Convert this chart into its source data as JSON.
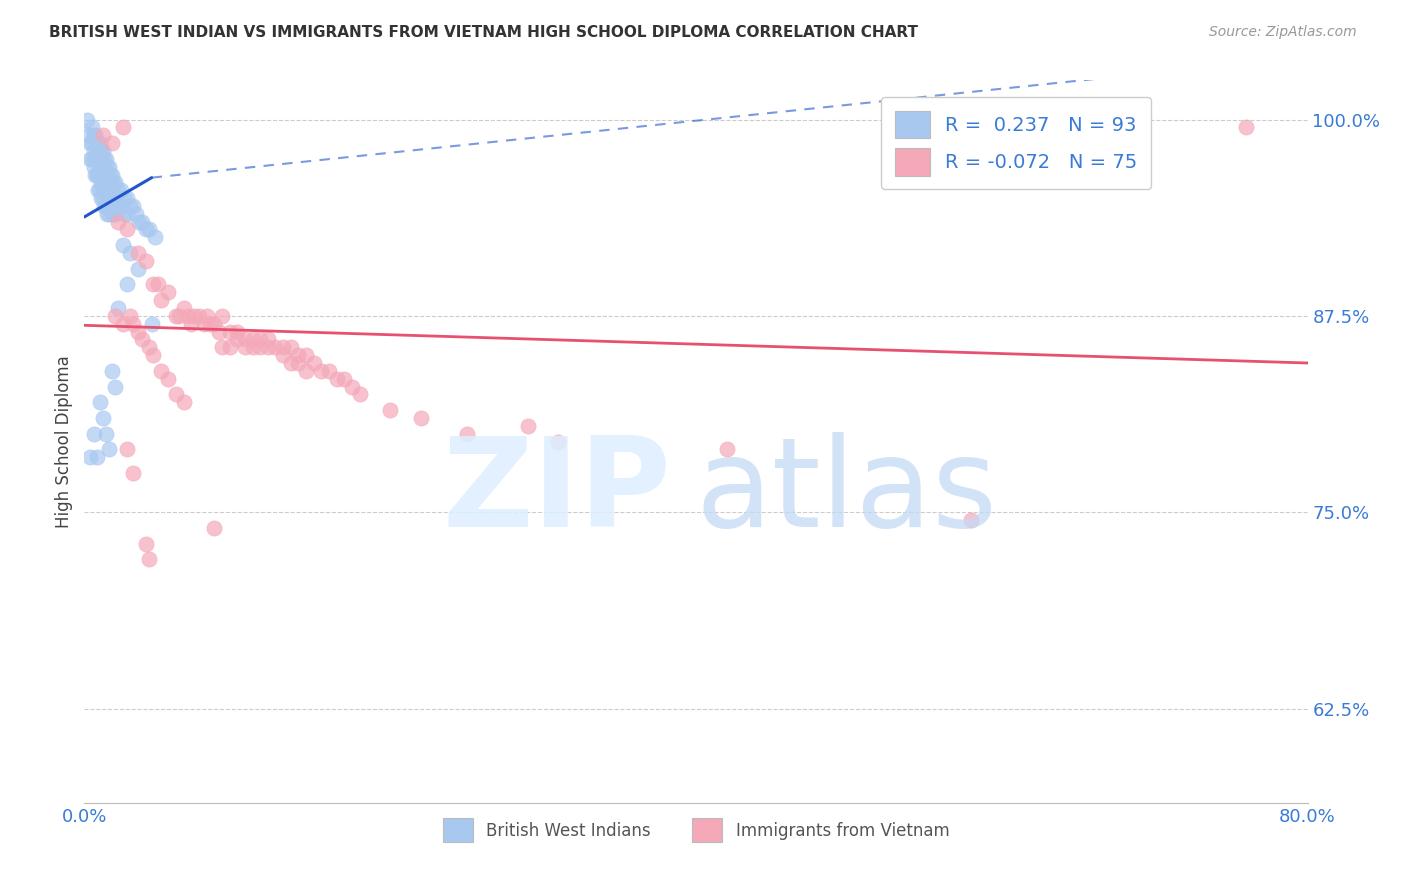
{
  "title": "BRITISH WEST INDIAN VS IMMIGRANTS FROM VIETNAM HIGH SCHOOL DIPLOMA CORRELATION CHART",
  "source": "Source: ZipAtlas.com",
  "ylabel": "High School Diploma",
  "ytick_labels": [
    "100.0%",
    "87.5%",
    "75.0%",
    "62.5%"
  ],
  "ytick_values": [
    1.0,
    0.875,
    0.75,
    0.625
  ],
  "xlim": [
    0.0,
    0.8
  ],
  "ylim": [
    0.565,
    1.025
  ],
  "watermark_zip": "ZIP",
  "watermark_atlas": "atlas",
  "blue_color": "#a8c8f0",
  "pink_color": "#f4a8b8",
  "blue_line_color": "#2255cc",
  "pink_line_color": "#e85070",
  "blue_scatter": [
    [
      0.002,
      1.0
    ],
    [
      0.003,
      0.99
    ],
    [
      0.004,
      0.985
    ],
    [
      0.004,
      0.975
    ],
    [
      0.005,
      0.995
    ],
    [
      0.005,
      0.985
    ],
    [
      0.005,
      0.975
    ],
    [
      0.006,
      0.99
    ],
    [
      0.006,
      0.98
    ],
    [
      0.006,
      0.97
    ],
    [
      0.007,
      0.99
    ],
    [
      0.007,
      0.975
    ],
    [
      0.007,
      0.965
    ],
    [
      0.008,
      0.985
    ],
    [
      0.008,
      0.975
    ],
    [
      0.008,
      0.965
    ],
    [
      0.009,
      0.98
    ],
    [
      0.009,
      0.975
    ],
    [
      0.009,
      0.965
    ],
    [
      0.009,
      0.955
    ],
    [
      0.01,
      0.985
    ],
    [
      0.01,
      0.975
    ],
    [
      0.01,
      0.965
    ],
    [
      0.01,
      0.955
    ],
    [
      0.011,
      0.98
    ],
    [
      0.011,
      0.97
    ],
    [
      0.011,
      0.96
    ],
    [
      0.011,
      0.95
    ],
    [
      0.012,
      0.98
    ],
    [
      0.012,
      0.97
    ],
    [
      0.012,
      0.96
    ],
    [
      0.012,
      0.95
    ],
    [
      0.013,
      0.975
    ],
    [
      0.013,
      0.965
    ],
    [
      0.013,
      0.955
    ],
    [
      0.013,
      0.945
    ],
    [
      0.014,
      0.975
    ],
    [
      0.014,
      0.965
    ],
    [
      0.014,
      0.955
    ],
    [
      0.014,
      0.945
    ],
    [
      0.015,
      0.97
    ],
    [
      0.015,
      0.96
    ],
    [
      0.015,
      0.95
    ],
    [
      0.015,
      0.94
    ],
    [
      0.016,
      0.97
    ],
    [
      0.016,
      0.96
    ],
    [
      0.016,
      0.95
    ],
    [
      0.016,
      0.94
    ],
    [
      0.017,
      0.965
    ],
    [
      0.017,
      0.955
    ],
    [
      0.017,
      0.945
    ],
    [
      0.018,
      0.965
    ],
    [
      0.018,
      0.955
    ],
    [
      0.018,
      0.945
    ],
    [
      0.019,
      0.96
    ],
    [
      0.019,
      0.95
    ],
    [
      0.019,
      0.94
    ],
    [
      0.02,
      0.96
    ],
    [
      0.02,
      0.95
    ],
    [
      0.02,
      0.94
    ],
    [
      0.022,
      0.955
    ],
    [
      0.022,
      0.945
    ],
    [
      0.024,
      0.955
    ],
    [
      0.024,
      0.945
    ],
    [
      0.026,
      0.95
    ],
    [
      0.026,
      0.94
    ],
    [
      0.028,
      0.95
    ],
    [
      0.028,
      0.94
    ],
    [
      0.03,
      0.945
    ],
    [
      0.032,
      0.945
    ],
    [
      0.034,
      0.94
    ],
    [
      0.036,
      0.935
    ],
    [
      0.038,
      0.935
    ],
    [
      0.04,
      0.93
    ],
    [
      0.042,
      0.93
    ],
    [
      0.044,
      0.87
    ],
    [
      0.046,
      0.925
    ],
    [
      0.025,
      0.92
    ],
    [
      0.03,
      0.915
    ],
    [
      0.022,
      0.88
    ],
    [
      0.02,
      0.83
    ],
    [
      0.018,
      0.84
    ],
    [
      0.016,
      0.79
    ],
    [
      0.014,
      0.8
    ],
    [
      0.012,
      0.81
    ],
    [
      0.01,
      0.82
    ],
    [
      0.008,
      0.785
    ],
    [
      0.006,
      0.8
    ],
    [
      0.004,
      0.785
    ],
    [
      0.035,
      0.905
    ],
    [
      0.028,
      0.895
    ]
  ],
  "pink_scatter": [
    [
      0.012,
      0.99
    ],
    [
      0.018,
      0.985
    ],
    [
      0.025,
      0.995
    ],
    [
      0.022,
      0.935
    ],
    [
      0.028,
      0.93
    ],
    [
      0.035,
      0.915
    ],
    [
      0.04,
      0.91
    ],
    [
      0.045,
      0.895
    ],
    [
      0.048,
      0.895
    ],
    [
      0.05,
      0.885
    ],
    [
      0.055,
      0.89
    ],
    [
      0.06,
      0.875
    ],
    [
      0.062,
      0.875
    ],
    [
      0.065,
      0.88
    ],
    [
      0.068,
      0.875
    ],
    [
      0.07,
      0.87
    ],
    [
      0.072,
      0.875
    ],
    [
      0.075,
      0.875
    ],
    [
      0.078,
      0.87
    ],
    [
      0.08,
      0.875
    ],
    [
      0.082,
      0.87
    ],
    [
      0.085,
      0.87
    ],
    [
      0.088,
      0.865
    ],
    [
      0.09,
      0.875
    ],
    [
      0.09,
      0.855
    ],
    [
      0.095,
      0.865
    ],
    [
      0.095,
      0.855
    ],
    [
      0.1,
      0.865
    ],
    [
      0.1,
      0.86
    ],
    [
      0.105,
      0.86
    ],
    [
      0.105,
      0.855
    ],
    [
      0.11,
      0.86
    ],
    [
      0.11,
      0.855
    ],
    [
      0.115,
      0.86
    ],
    [
      0.115,
      0.855
    ],
    [
      0.12,
      0.86
    ],
    [
      0.12,
      0.855
    ],
    [
      0.125,
      0.855
    ],
    [
      0.13,
      0.855
    ],
    [
      0.13,
      0.85
    ],
    [
      0.135,
      0.855
    ],
    [
      0.135,
      0.845
    ],
    [
      0.14,
      0.85
    ],
    [
      0.14,
      0.845
    ],
    [
      0.145,
      0.85
    ],
    [
      0.145,
      0.84
    ],
    [
      0.15,
      0.845
    ],
    [
      0.155,
      0.84
    ],
    [
      0.16,
      0.84
    ],
    [
      0.165,
      0.835
    ],
    [
      0.17,
      0.835
    ],
    [
      0.175,
      0.83
    ],
    [
      0.18,
      0.825
    ],
    [
      0.02,
      0.875
    ],
    [
      0.025,
      0.87
    ],
    [
      0.03,
      0.875
    ],
    [
      0.032,
      0.87
    ],
    [
      0.035,
      0.865
    ],
    [
      0.038,
      0.86
    ],
    [
      0.042,
      0.855
    ],
    [
      0.045,
      0.85
    ],
    [
      0.05,
      0.84
    ],
    [
      0.055,
      0.835
    ],
    [
      0.06,
      0.825
    ],
    [
      0.065,
      0.82
    ],
    [
      0.028,
      0.79
    ],
    [
      0.032,
      0.775
    ],
    [
      0.04,
      0.73
    ],
    [
      0.042,
      0.72
    ],
    [
      0.085,
      0.74
    ],
    [
      0.2,
      0.815
    ],
    [
      0.22,
      0.81
    ],
    [
      0.25,
      0.8
    ],
    [
      0.29,
      0.805
    ],
    [
      0.31,
      0.795
    ],
    [
      0.42,
      0.79
    ],
    [
      0.58,
      0.745
    ],
    [
      0.76,
      0.995
    ]
  ],
  "blue_trendline_solid": [
    [
      0.0,
      0.938
    ],
    [
      0.044,
      0.963
    ]
  ],
  "blue_trendline_dashed": [
    [
      0.044,
      0.963
    ],
    [
      0.8,
      1.04
    ]
  ],
  "pink_trendline": [
    [
      0.0,
      0.869
    ],
    [
      0.8,
      0.845
    ]
  ]
}
